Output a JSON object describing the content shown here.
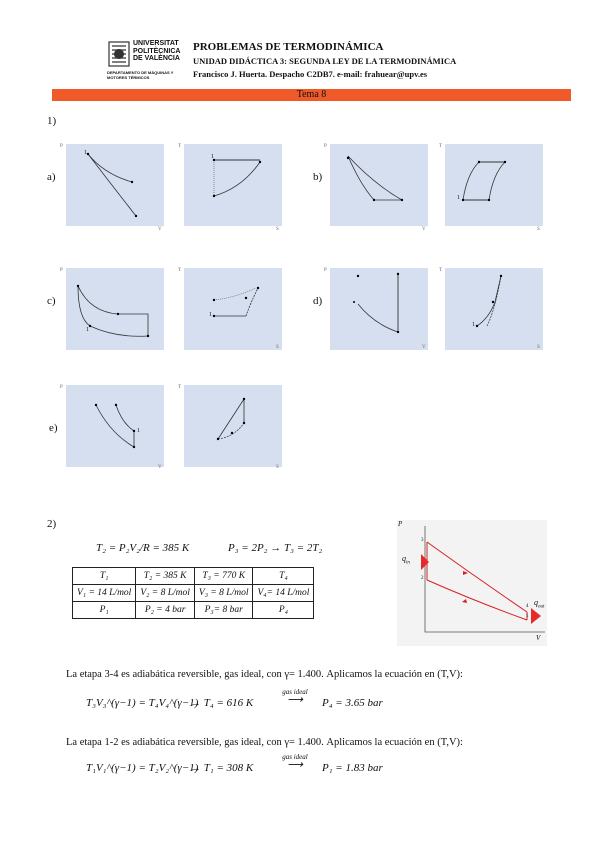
{
  "header": {
    "university": [
      "UNIVERSITAT",
      "POLITÈCNICA",
      "DE VALÈNCIA"
    ],
    "department": [
      "DEPARTAMENTO DE MÁQUINAS Y",
      "MOTORES TÉRMICOS"
    ],
    "title": "PROBLEMAS DE TERMODINÁMICA",
    "unit": "UNIDAD DIDÁCTICA 3: SEGUNDA LEY DE LA TERMODINÁMICA",
    "author": "Francisco J. Huerta. Despacho C2DB7. e-mail: frahuear@upv.es"
  },
  "section_bar": "Tema 8",
  "problem1": {
    "number": "1)",
    "labels": [
      "a)",
      "b)",
      "c)",
      "d)",
      "e)"
    ]
  },
  "axis_labels": {
    "p": "P",
    "t": "T",
    "v": "V",
    "s": "S"
  },
  "point_labels": {
    "one": "1",
    "two": "2",
    "three": "3",
    "four": "4"
  },
  "problem2": {
    "number": "2)",
    "eq_T2": "T₂ = P₂V₂/R = 385 K",
    "eq_P3": "P₃ = 2P₂ → T₃ = 2T₂",
    "table": [
      [
        "T₁",
        "T₂ = 385 K",
        "T₃ = 770 K",
        "T₄"
      ],
      [
        "V₁ = 14 L/mol",
        "V₂ = 8 L/mol",
        "V₃ = 8 L/mol",
        "V₄= 14 L/mol"
      ],
      [
        "P₁",
        "P₂ = 4 bar",
        "P₃= 8 bar",
        "P₄"
      ]
    ],
    "diagram": {
      "q_in": "q",
      "q_in_sub": "in",
      "q_out": "q",
      "q_out_sub": "out",
      "x": "V",
      "y": "P"
    },
    "text_34": "La etapa 3-4 es adiabática reversible, gas ideal, con γ= 1.400. Aplicamos la ecuación en (T,V):",
    "eq_34_left": "T₃V₃^(γ−1) = T₄V₄^(γ−1)",
    "eq_34_mid": "→  T₄ = 616 K",
    "eq_34_arrow": "gas ideal",
    "eq_34_right": "P₄ = 3.65 bar",
    "text_12": "La etapa 1-2 es adiabática reversible, gas ideal, con γ= 1.400. Aplicamos la ecuación en (T,V):",
    "eq_12_left": "T₁V₁^(γ−1) = T₂V₂^(γ−1)",
    "eq_12_mid": "→  T₁ = 308 K",
    "eq_12_arrow": "gas ideal",
    "eq_12_right": "P₁ = 1.83 bar"
  },
  "colors": {
    "bar": "#f05a28",
    "plot_bg": "#d5dff0",
    "cycle": "#e02020"
  }
}
